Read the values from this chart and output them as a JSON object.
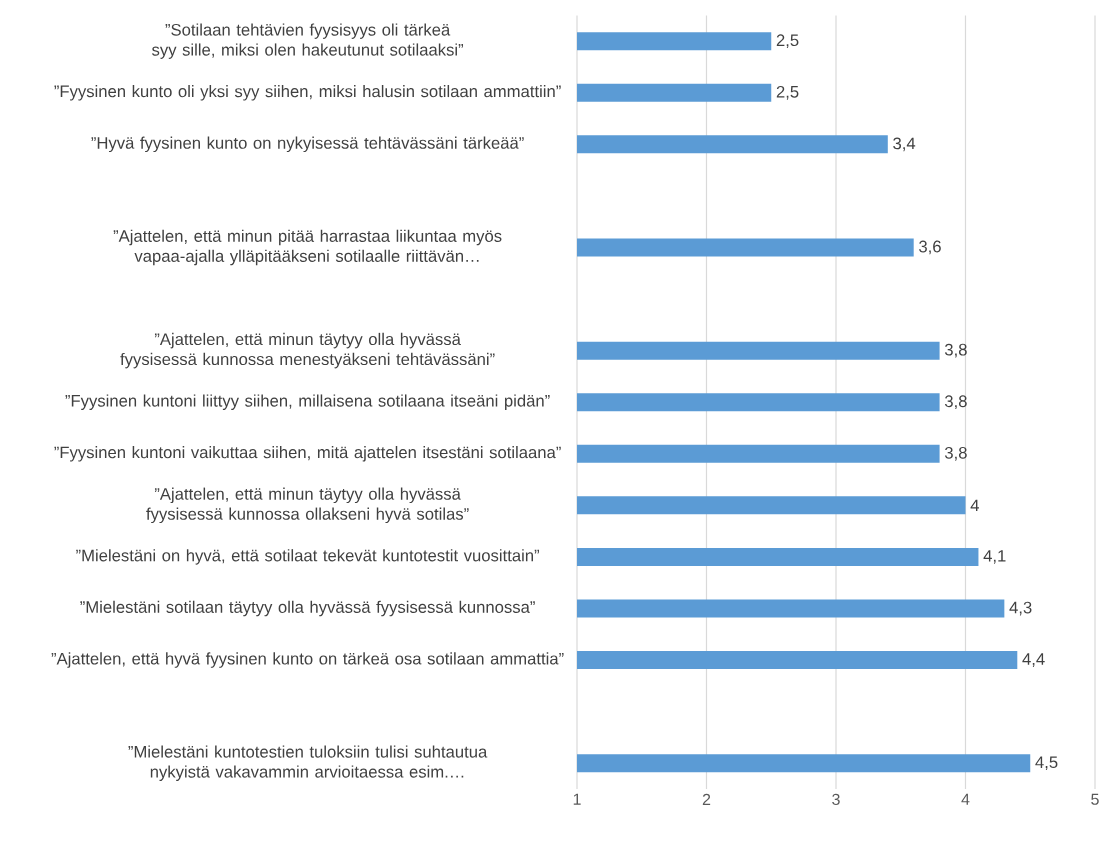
{
  "chart_data": {
    "type": "bar",
    "orientation": "horizontal",
    "categories": [
      "”Sotilaan tehtävien fyysisyys oli tärkeä syy sille, miksi olen hakeutunut sotilaaksi”",
      "”Fyysinen kunto oli yksi syy siihen, miksi halusin sotilaan ammattiin”",
      "”Hyvä fyysinen kunto on nykyisessä tehtävässäni tärkeää”",
      null,
      "”Ajattelen, että minun pitää harrastaa liikuntaa myös vapaa-ajalla ylläpitääkseni sotilaalle riittävän…",
      null,
      "”Ajattelen, että minun täytyy olla hyvässä fyysisessä kunnossa menestyäkseni tehtävässäni”",
      "”Fyysinen kuntoni liittyy siihen, millaisena sotilaana itseäni pidän”",
      "”Fyysinen kuntoni vaikuttaa siihen, mitä ajattelen itsestäni sotilaana”",
      "”Ajattelen, että minun täytyy olla hyvässä fyysisessä kunnossa ollakseni hyvä sotilas”",
      "”Mielestäni on hyvä, että sotilaat tekevät kuntotestit vuosittain”",
      "”Mielestäni sotilaan täytyy olla hyvässä fyysisessä kunnossa”",
      "”Ajattelen, että hyvä fyysinen kunto on tärkeä osa sotilaan ammattia”",
      null,
      "”Mielestäni kuntotestien tuloksiin tulisi suhtautua nykyistä vakavammin arvioitaessa esim.…"
    ],
    "values": [
      2.5,
      2.5,
      3.4,
      null,
      3.6,
      null,
      3.8,
      3.8,
      3.8,
      4,
      4.1,
      4.3,
      4.4,
      null,
      4.5
    ],
    "value_labels": [
      "2,5",
      "2,5",
      "3,4",
      null,
      "3,6",
      null,
      "3,8",
      "3,8",
      "3,8",
      "4",
      "4,1",
      "4,3",
      "4,4",
      null,
      "4,5"
    ],
    "color": "#5b9bd5",
    "xlim": [
      1,
      5
    ],
    "xticks": [
      1,
      2,
      3,
      4,
      5
    ],
    "grid": "x"
  }
}
